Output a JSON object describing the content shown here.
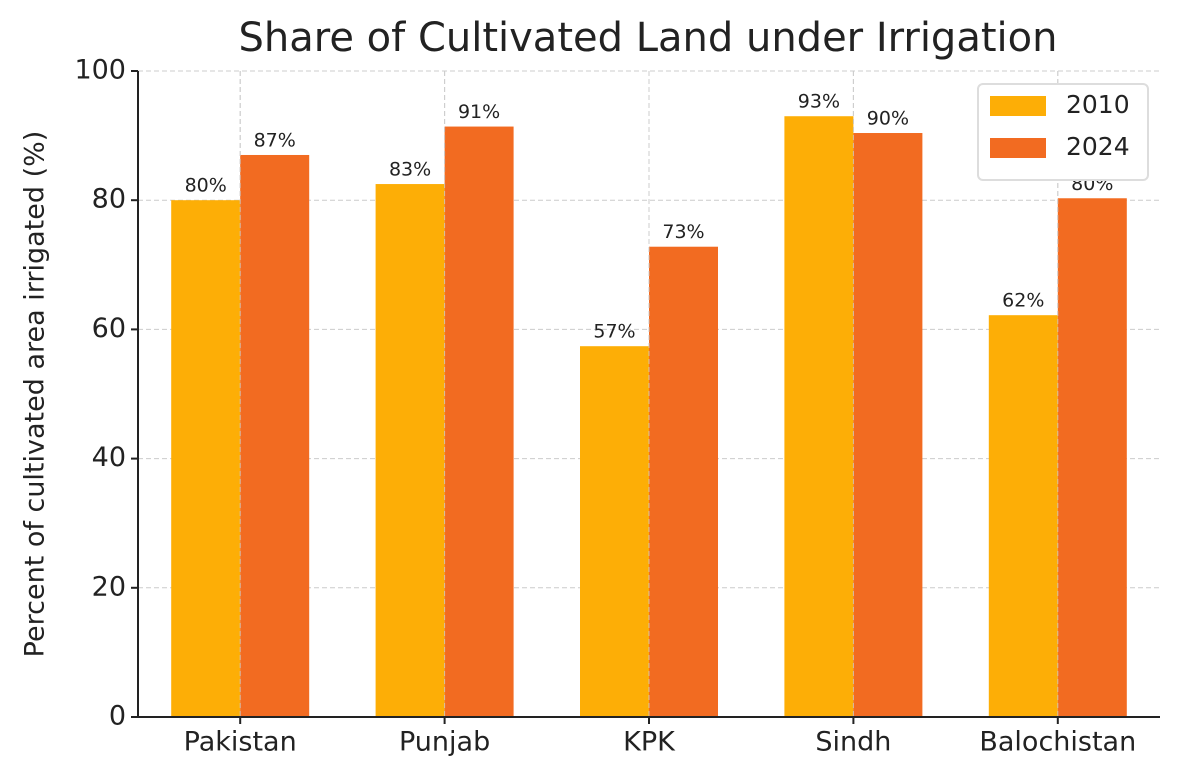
{
  "chart_data": {
    "type": "bar",
    "title": "Share of Cultivated Land under Irrigation",
    "y_label": "Percent of cultivated area irrigated (%)",
    "categories": [
      "Pakistan",
      "Punjab",
      "KPK",
      "Sindh",
      "Balochistan"
    ],
    "series": [
      {
        "name": "2010",
        "color": "#fdae06",
        "values": [
          80.0,
          82.5,
          57.4,
          93.0,
          62.2
        ],
        "value_labels": [
          "80%",
          "83%",
          "57%",
          "93%",
          "62%"
        ]
      },
      {
        "name": "2024",
        "color": "#f26b21",
        "values": [
          87.0,
          91.4,
          72.8,
          90.4,
          80.3
        ],
        "value_labels": [
          "87%",
          "91%",
          "73%",
          "90%",
          "80%"
        ]
      }
    ],
    "ylim": [
      0,
      100
    ],
    "yticks": [
      0,
      20,
      40,
      60,
      80,
      100
    ],
    "grid": true,
    "legend": "upper right"
  }
}
